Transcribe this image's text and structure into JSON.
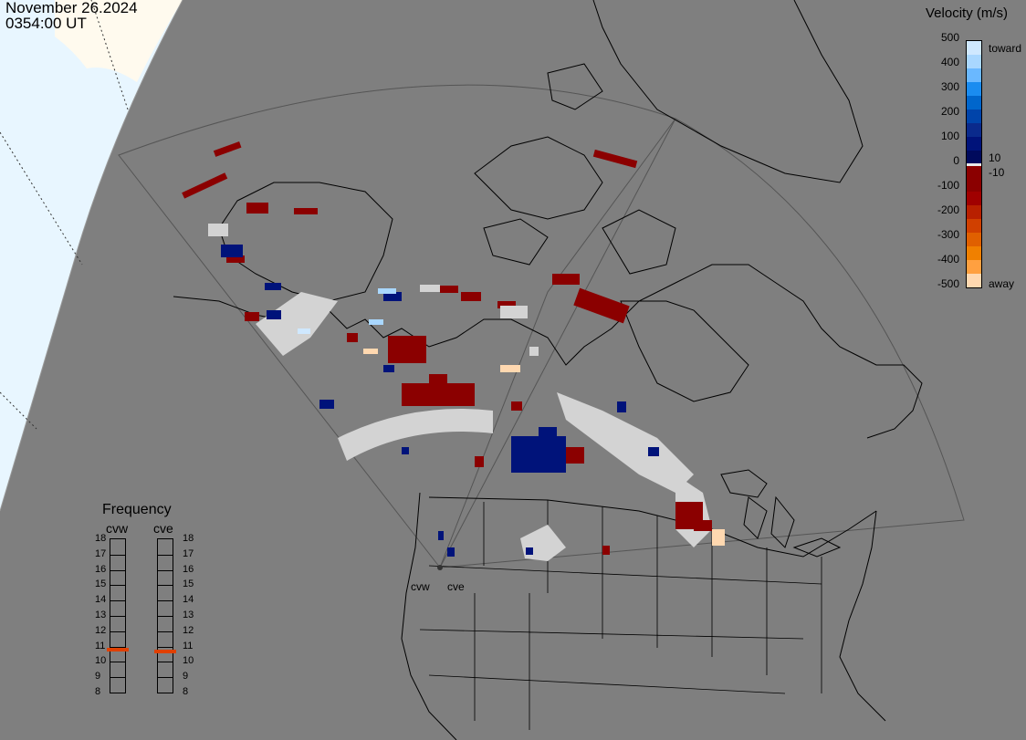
{
  "header": {
    "date": "November 26.2024",
    "time": "0354:00 UT"
  },
  "colorbar": {
    "title": "Velocity (m/s)",
    "ticks": [
      "500",
      "400",
      "300",
      "200",
      "100",
      "0",
      "-100",
      "-200",
      "-300",
      "-400",
      "-500"
    ],
    "label_toward": "toward",
    "label_away": "away",
    "label_pos": "10",
    "label_neg": "-10",
    "colors": [
      "#cfe8ff",
      "#a9d7ff",
      "#6ab8ff",
      "#1a8cf0",
      "#0066cc",
      "#0044aa",
      "#0a2a8c",
      "#00137a",
      "#000a5c",
      "#8b0000",
      "#8b0000",
      "#a00000",
      "#b82000",
      "#d04000",
      "#e06000",
      "#f08000",
      "#ffa040",
      "#ffd8b0"
    ]
  },
  "frequency": {
    "title": "Frequency",
    "radars": [
      "cvw",
      "cve"
    ],
    "labels": [
      "18",
      "17",
      "16",
      "15",
      "14",
      "13",
      "12",
      "11",
      "10",
      "9",
      "8"
    ],
    "cvw_value": 10.8,
    "cve_value": 10.7,
    "marker_color": "#e04000"
  },
  "stations": {
    "cvw": "cvw",
    "cve": "cve"
  },
  "colors": {
    "background": "#7f7f7f",
    "land_outline": "#000000",
    "daylight": "#e8f6ff",
    "ice": "#fffaee",
    "scatter_neutral": "#d3d3d3",
    "scatter_away": "#8b0000",
    "scatter_toward": "#00137a"
  }
}
